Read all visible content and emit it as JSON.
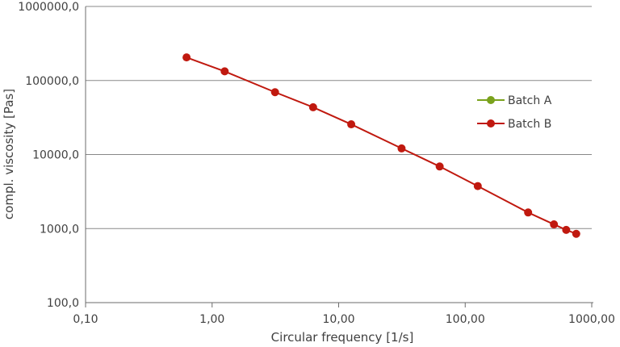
{
  "chart_data": {
    "type": "line",
    "x_scale": "log",
    "y_scale": "log",
    "xlabel": "Circular frequency [1/s]",
    "ylabel": "compl. viscosity [Pas]",
    "xlim": [
      0.1,
      1000
    ],
    "ylim": [
      100,
      1000000
    ],
    "x_ticks": [
      {
        "value": 0.1,
        "label": "0,10"
      },
      {
        "value": 1,
        "label": "1,00"
      },
      {
        "value": 10,
        "label": "10,00"
      },
      {
        "value": 100,
        "label": "100,00"
      },
      {
        "value": 1000,
        "label": "1000,00"
      }
    ],
    "y_ticks": [
      {
        "value": 100,
        "label": "100,0"
      },
      {
        "value": 1000,
        "label": "1000,0"
      },
      {
        "value": 10000,
        "label": "10000,0"
      },
      {
        "value": 100000,
        "label": "100000,0"
      },
      {
        "value": 1000000,
        "label": "1000000,0"
      }
    ],
    "grid": {
      "horizontal": true,
      "vertical": false
    },
    "legend_position": "right",
    "series": [
      {
        "name": "Batch A",
        "color": "#7aa21d",
        "x": [],
        "y": []
      },
      {
        "name": "Batch B",
        "color": "#c0190f",
        "x": [
          0.628,
          1.257,
          3.142,
          6.283,
          12.57,
          31.42,
          62.83,
          125.7,
          314.2,
          502.7,
          628.3,
          753.98
        ],
        "y": [
          205000,
          133000,
          69500,
          43500,
          25600,
          12100,
          6900,
          3750,
          1650,
          1140,
          960,
          850
        ]
      }
    ]
  }
}
